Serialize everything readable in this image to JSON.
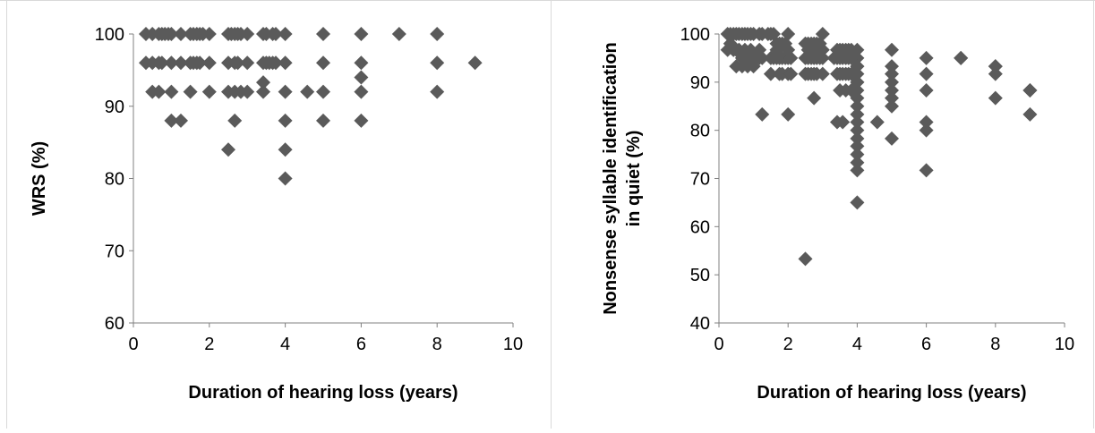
{
  "chart_data": [
    {
      "type": "scatter",
      "title": "",
      "xlabel": "Duration of hearing loss (years)",
      "ylabel": "WRS (%)",
      "xlim": [
        0,
        10
      ],
      "ylim": [
        60,
        100
      ],
      "xticks": [
        0,
        2,
        4,
        6,
        8,
        10
      ],
      "yticks": [
        60,
        70,
        80,
        90,
        100
      ],
      "grid": false,
      "legend": "none",
      "marker": "diamond",
      "marker_color": "#5a5a5a",
      "series": [
        {
          "x": [
            0.33,
            0.5,
            0.67,
            0.75,
            0.83,
            0.92,
            1.0,
            1.25,
            1.5,
            1.58,
            1.67,
            1.75,
            1.83,
            2.0,
            2.5,
            2.58,
            2.67,
            2.75,
            2.83,
            3.0,
            3.42,
            3.5,
            3.67,
            3.75,
            4.0,
            5.0,
            6.0,
            7.0,
            8.0,
            0.33,
            0.5,
            0.67,
            0.75,
            1.0,
            1.25,
            1.5,
            1.58,
            1.67,
            1.75,
            2.0,
            2.5,
            2.67,
            2.75,
            3.0,
            3.42,
            3.5,
            3.58,
            3.67,
            3.75,
            4.0,
            5.0,
            6.0,
            8.0,
            9.0,
            0.5,
            0.67,
            1.0,
            1.5,
            2.0,
            2.5,
            2.67,
            2.83,
            3.0,
            3.42,
            4.0,
            4.58,
            5.0,
            6.0,
            8.0,
            3.42,
            6.0,
            1.0,
            1.25,
            2.67,
            4.0,
            5.0,
            6.0,
            2.5,
            4.0,
            4.0
          ],
          "y": [
            100,
            100,
            100,
            100,
            100,
            100,
            100,
            100,
            100,
            100,
            100,
            100,
            100,
            100,
            100,
            100,
            100,
            100,
            100,
            100,
            100,
            100,
            100,
            100,
            100,
            100,
            100,
            100,
            100,
            96,
            96,
            96,
            96,
            96,
            96,
            96,
            96,
            96,
            96,
            96,
            96,
            96,
            96,
            96,
            96,
            96,
            96,
            96,
            96,
            96,
            96,
            96,
            96,
            96,
            92,
            92,
            92,
            92,
            92,
            92,
            92,
            92,
            92,
            92,
            92,
            92,
            92,
            92,
            92,
            93.3,
            94,
            88,
            88,
            88,
            88,
            88,
            88,
            84,
            84,
            80
          ]
        }
      ]
    },
    {
      "type": "scatter",
      "title": "",
      "xlabel": "Duration of hearing loss (years)",
      "ylabel": "Nonsense syllable identification in quiet (%)",
      "ylabel_lines": [
        "Nonsense syllable identification",
        "in quiet (%)"
      ],
      "xlim": [
        0,
        10
      ],
      "ylim": [
        40,
        100
      ],
      "xticks": [
        0,
        2,
        4,
        6,
        8,
        10
      ],
      "yticks": [
        40,
        50,
        60,
        70,
        80,
        90,
        100
      ],
      "grid": false,
      "legend": "none",
      "marker": "diamond",
      "marker_color": "#5a5a5a",
      "series": [
        {
          "x": [
            0.25,
            0.33,
            0.42,
            0.5,
            0.58,
            0.67,
            0.75,
            0.83,
            0.92,
            1.0,
            1.17,
            1.25,
            1.42,
            1.5,
            1.58,
            1.67,
            1.75,
            1.83,
            1.92,
            2.0,
            2.5,
            2.58,
            2.67,
            2.75,
            2.83,
            2.92,
            3.0,
            3.42,
            3.5,
            3.58,
            3.67,
            3.75,
            3.83,
            4.0,
            5.0,
            6.0,
            7.0,
            8.0,
            9.0,
            0.33,
            0.42,
            0.5,
            0.58,
            0.67,
            0.75,
            0.83,
            0.92,
            1.0,
            1.08,
            1.17,
            1.25,
            1.5,
            1.58,
            1.67,
            1.75,
            1.83,
            1.92,
            2.0,
            2.08,
            2.5,
            2.58,
            2.67,
            2.75,
            2.83,
            2.92,
            3.0,
            3.33,
            3.42,
            3.5,
            3.58,
            3.67,
            3.75,
            3.83,
            3.92,
            4.0,
            4.0,
            4.0,
            4.0,
            4.0,
            5.0,
            5.0,
            5.0,
            5.0,
            5.0,
            5.0,
            6.0,
            6.0,
            7.0,
            8.0,
            8.0,
            9.0,
            0.5,
            0.67,
            0.83,
            1.0,
            1.5,
            1.75,
            1.83,
            2.0,
            2.08,
            2.5,
            2.58,
            2.67,
            2.75,
            2.83,
            3.0,
            3.42,
            3.5,
            3.58,
            3.67,
            3.75,
            3.83,
            3.92,
            4.0,
            4.0,
            4.0,
            4.0,
            4.0,
            4.0,
            4.0,
            4.0,
            0.25,
            0.42,
            0.58,
            0.75,
            0.92,
            1.17,
            1.67,
            2.0,
            2.58,
            2.75,
            3.0,
            3.5,
            3.67,
            3.83,
            4.0,
            1.25,
            2.0,
            3.42,
            3.58,
            4.0,
            4.58,
            5.0,
            6.0,
            6.0,
            8.0,
            9.0,
            2.75,
            6.0,
            4.0,
            4.0,
            4.0,
            2.5
          ],
          "y": [
            100,
            100,
            100,
            100,
            100,
            100,
            100,
            100,
            100,
            100,
            100,
            100,
            100,
            100,
            100,
            98,
            98,
            98,
            98,
            100,
            98,
            98,
            98,
            98,
            98,
            98,
            100,
            96.7,
            96.7,
            96.7,
            96.7,
            96.7,
            96.7,
            96.7,
            96.7,
            95,
            95,
            93.3,
            88.3,
            98,
            96.7,
            96.7,
            96.7,
            95,
            95,
            95,
            95,
            95,
            95,
            95,
            95,
            95,
            95,
            95,
            95,
            95,
            95,
            95,
            95,
            95,
            95,
            95,
            95,
            95,
            95,
            95,
            95,
            95,
            95,
            95,
            95,
            95,
            95,
            95,
            95,
            93.3,
            91.7,
            90,
            88.3,
            93.3,
            91.7,
            90,
            88.3,
            86.7,
            85,
            91.7,
            88.3,
            95,
            91.7,
            86.7,
            83.3,
            93.3,
            93.3,
            93.3,
            93.3,
            91.7,
            91.7,
            91.7,
            91.7,
            91.7,
            91.7,
            91.7,
            91.7,
            91.7,
            91.7,
            91.7,
            91.7,
            91.7,
            91.7,
            91.7,
            91.7,
            91.7,
            91.7,
            86.7,
            85,
            83.3,
            81.7,
            80,
            78.3,
            76.7,
            75,
            96.7,
            96.7,
            96.7,
            96.7,
            96.7,
            96.7,
            96.7,
            96.7,
            96.7,
            96.7,
            96.7,
            88.3,
            88.3,
            88.3,
            73.3,
            83.3,
            83.3,
            81.7,
            81.7,
            71.7,
            81.7,
            78.3,
            81.7,
            80,
            93.3,
            88.3,
            86.7,
            71.7,
            65,
            93.3,
            90,
            53.3
          ]
        }
      ]
    }
  ]
}
